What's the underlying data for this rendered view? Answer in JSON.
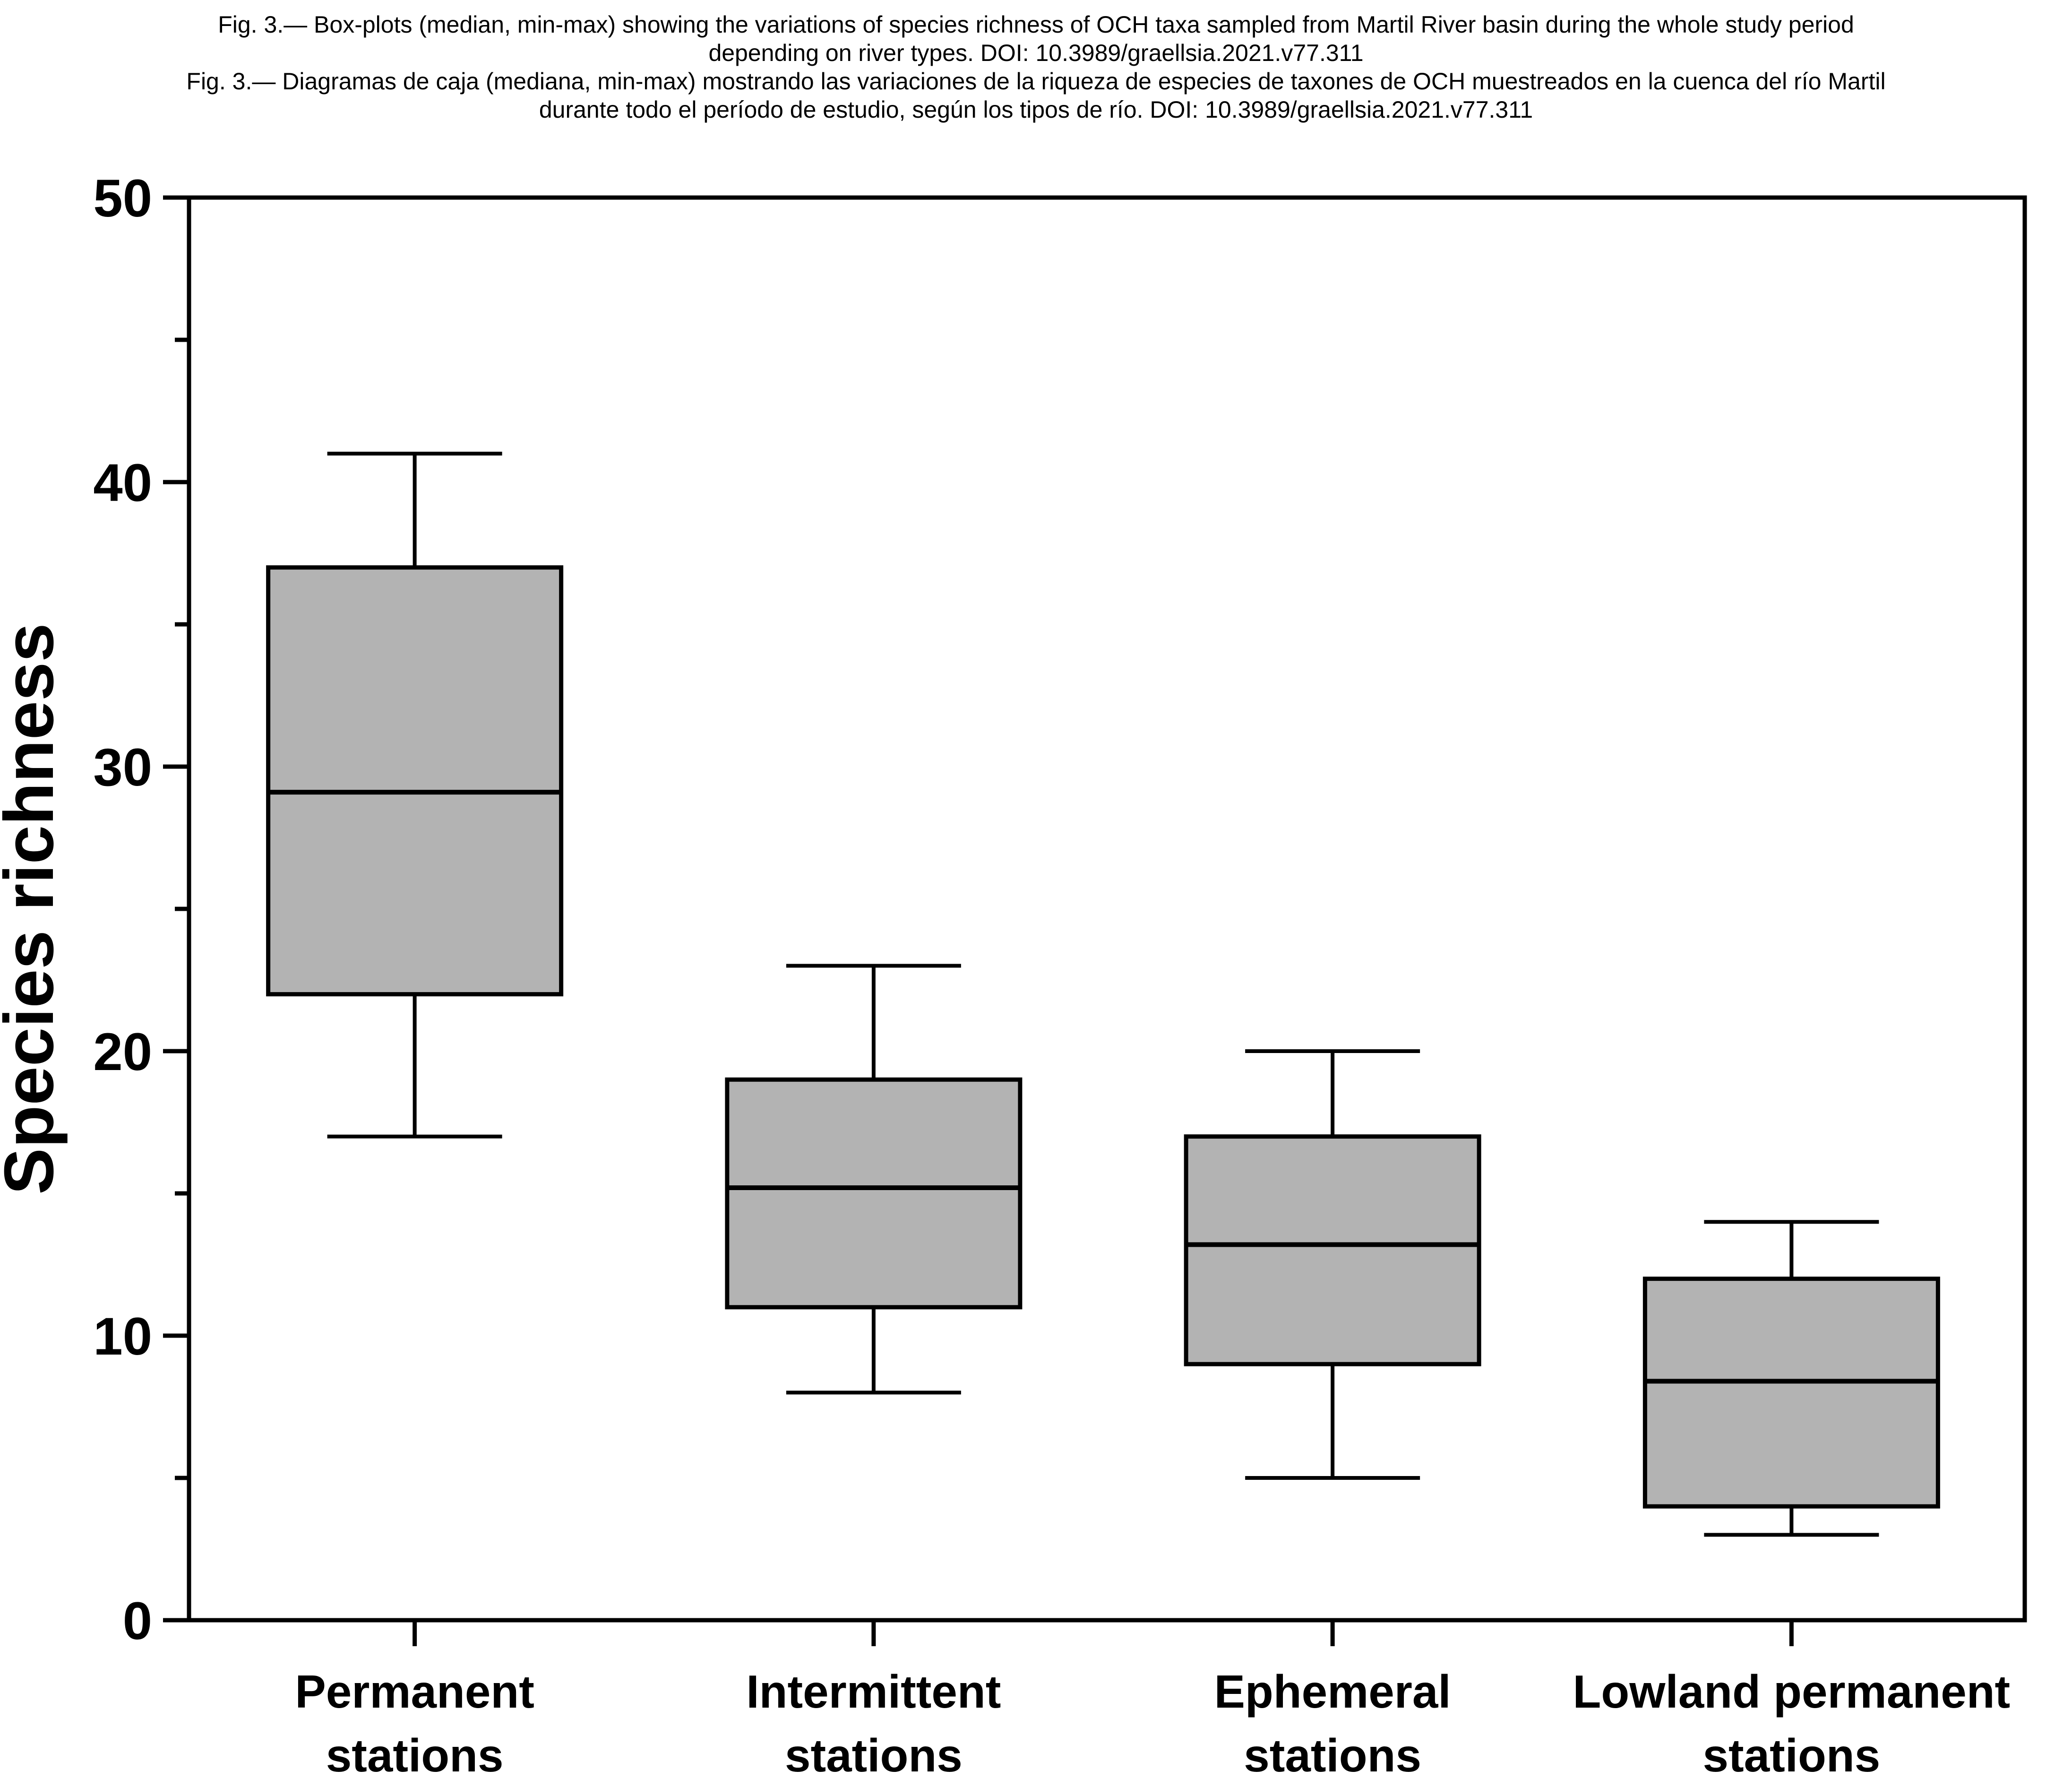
{
  "caption": {
    "en_line1": "Fig. 3.— Box-plots (median, min-max) showing the variations of species richness of OCH taxa sampled from Martil River basin during the whole study period",
    "en_line2": "depending on river types. DOI: 10.3989/graellsia.2021.v77.311",
    "es_line1": "Fig. 3.— Diagramas de caja (mediana, min-max) mostrando las variaciones de la riqueza de especies de taxones de OCH muestreados en la cuenca del río Martil",
    "es_line2": "durante todo el período de estudio, según los tipos de río. DOI: 10.3989/graellsia.2021.v77.311"
  },
  "chart_data": {
    "type": "box",
    "ylabel": "Species richness",
    "xlabel": "",
    "ylim": [
      0,
      50
    ],
    "yticks": [
      0,
      10,
      20,
      30,
      40,
      50
    ],
    "minor_tick_step": 5,
    "grid": false,
    "box_fill": "#b3b3b3",
    "line_color": "#000000",
    "categories": [
      {
        "label_line1": "Permanent",
        "label_line2": "stations",
        "min": 17,
        "q1": 22,
        "median": 29.1,
        "q3": 37,
        "max": 41
      },
      {
        "label_line1": "Intermittent",
        "label_line2": "stations",
        "min": 8,
        "q1": 11,
        "median": 15.2,
        "q3": 19,
        "max": 23
      },
      {
        "label_line1": "Ephemeral",
        "label_line2": "stations",
        "min": 5,
        "q1": 9,
        "median": 13.2,
        "q3": 17,
        "max": 20
      },
      {
        "label_line1": "Lowland permanent",
        "label_line2": "stations",
        "min": 3,
        "q1": 4,
        "median": 8.4,
        "q3": 12,
        "max": 14
      }
    ]
  }
}
